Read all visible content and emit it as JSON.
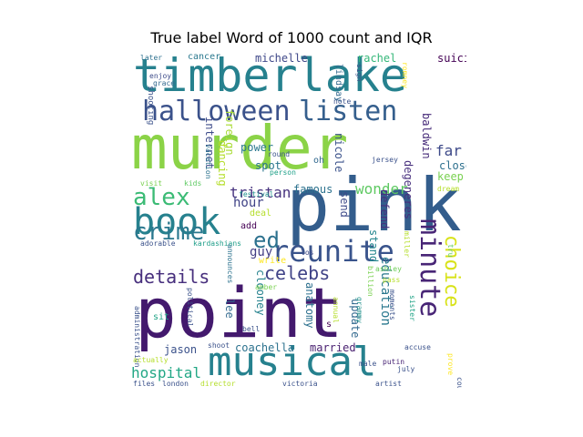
{
  "chart_data": {
    "type": "wordcloud",
    "title": "True label Word of 1000 count and IQR",
    "colormap": "viridis",
    "words": [
      {
        "text": "point",
        "color": "#43196d"
      },
      {
        "text": "murder",
        "color": "#8bd347"
      },
      {
        "text": "pink",
        "color": "#335d8c"
      },
      {
        "text": "timberlake",
        "color": "#26818e"
      },
      {
        "text": "musical",
        "color": "#26818e"
      },
      {
        "text": "book",
        "color": "#26818e"
      },
      {
        "text": "reunite",
        "color": "#3a548c"
      },
      {
        "text": "halloween",
        "color": "#3b528b"
      },
      {
        "text": "listen",
        "color": "#355f8d"
      },
      {
        "text": "crime",
        "color": "#2a788e"
      },
      {
        "text": "alex",
        "color": "#3bbb75"
      },
      {
        "text": "details",
        "color": "#472f7d"
      },
      {
        "text": "celebs",
        "color": "#404387"
      },
      {
        "text": "minute",
        "color": "#482576"
      },
      {
        "text": "choice",
        "color": "#d8e219"
      },
      {
        "text": "hospital",
        "color": "#22a785"
      },
      {
        "text": "ed",
        "color": "#2c718e"
      },
      {
        "text": "tristan",
        "color": "#46327e"
      },
      {
        "text": "wonder",
        "color": "#5ec962"
      },
      {
        "text": "guy",
        "color": "#433e85"
      },
      {
        "text": "hour",
        "color": "#404387"
      },
      {
        "text": "far",
        "color": "#3e4a89"
      },
      {
        "text": "michelle",
        "color": "#3f4889"
      },
      {
        "text": "rachel",
        "color": "#35b779"
      },
      {
        "text": "suicide",
        "color": "#440154"
      },
      {
        "text": "cancer",
        "color": "#2a788e"
      },
      {
        "text": "famous",
        "color": "#2c728e"
      },
      {
        "text": "spot",
        "color": "#2a768e"
      },
      {
        "text": "power",
        "color": "#2a788e"
      },
      {
        "text": "education",
        "color": "#2a788e"
      },
      {
        "text": "nicole",
        "color": "#3b528b"
      },
      {
        "text": "lindsay",
        "color": "#31688e"
      },
      {
        "text": "internet",
        "color": "#3e4c8a"
      },
      {
        "text": "foreign",
        "color": "#a8db34"
      },
      {
        "text": "dancing",
        "color": "#b5de2b"
      },
      {
        "text": "baldwin",
        "color": "#472c7a"
      },
      {
        "text": "close",
        "color": "#2d708e"
      },
      {
        "text": "keep",
        "color": "#7ad151"
      },
      {
        "text": "coachella",
        "color": "#2c728e"
      },
      {
        "text": "married",
        "color": "#481f70"
      },
      {
        "text": "jason",
        "color": "#3b528b"
      },
      {
        "text": "clooney",
        "color": "#26828e"
      },
      {
        "text": "lee",
        "color": "#31688e"
      },
      {
        "text": "update",
        "color": "#31688e"
      },
      {
        "text": "degeneres",
        "color": "#472f7d"
      },
      {
        "text": "write",
        "color": "#fde725"
      },
      {
        "text": "deal",
        "color": "#b5de2b"
      },
      {
        "text": "add",
        "color": "#440154"
      },
      {
        "text": "send",
        "color": "#3e4a89"
      },
      {
        "text": "stand",
        "color": "#24868e"
      },
      {
        "text": "defend",
        "color": "#46307e"
      },
      {
        "text": "anatomy",
        "color": "#2d708e"
      },
      {
        "text": "sit",
        "color": "#20a386"
      },
      {
        "text": "later",
        "color": "#2d708e"
      },
      {
        "text": "enjoy",
        "color": "#3e4c8a"
      },
      {
        "text": "grace",
        "color": "#31688e"
      },
      {
        "text": "shooting",
        "color": "#3b528b"
      },
      {
        "text": "vacation",
        "color": "#2c728e"
      },
      {
        "text": "kids",
        "color": "#5ec962"
      },
      {
        "text": "visit",
        "color": "#7ad151"
      },
      {
        "text": "round",
        "color": "#3b528b"
      },
      {
        "text": "person",
        "color": "#1fa088"
      },
      {
        "text": "festival",
        "color": "#21918c"
      },
      {
        "text": "oh",
        "color": "#31688e"
      },
      {
        "text": "jersey",
        "color": "#3b528b"
      },
      {
        "text": "dream",
        "color": "#b5de2b"
      },
      {
        "text": "note",
        "color": "#3b528b"
      },
      {
        "text": "sign",
        "color": "#3b528b"
      },
      {
        "text": "romney",
        "color": "#fde725"
      },
      {
        "text": "adorable",
        "color": "#3b528b"
      },
      {
        "text": "kardashians",
        "color": "#1f9e89"
      },
      {
        "text": "announces",
        "color": "#2c728e"
      },
      {
        "text": "political",
        "color": "#3b528b"
      },
      {
        "text": "los",
        "color": "#3e4a89"
      },
      {
        "text": "ashley",
        "color": "#6ece58"
      },
      {
        "text": "pass",
        "color": "#b5de2b"
      },
      {
        "text": "amber",
        "color": "#7ad151"
      },
      {
        "text": "tru",
        "color": "#5ec962"
      },
      {
        "text": "sister",
        "color": "#20a386"
      },
      {
        "text": "moments",
        "color": "#3b528b"
      },
      {
        "text": "grammy",
        "color": "#21918c"
      },
      {
        "text": "billion",
        "color": "#7ad151"
      },
      {
        "text": "annual",
        "color": "#b5de2b"
      },
      {
        "text": "s",
        "color": "#440154"
      },
      {
        "text": "bell",
        "color": "#3b528b"
      },
      {
        "text": "administration",
        "color": "#3b528b"
      },
      {
        "text": "shoot",
        "color": "#3b528b"
      },
      {
        "text": "actually",
        "color": "#b5de2b"
      },
      {
        "text": "putin",
        "color": "#482475"
      },
      {
        "text": "july",
        "color": "#3b528b"
      },
      {
        "text": "accuse",
        "color": "#3b528b"
      },
      {
        "text": "male",
        "color": "#3b528b"
      },
      {
        "text": "prove",
        "color": "#fde725"
      },
      {
        "text": "court",
        "color": "#3b528b"
      },
      {
        "text": "files",
        "color": "#3b528b"
      },
      {
        "text": "london",
        "color": "#3b528b"
      },
      {
        "text": "director",
        "color": "#b5de2b"
      },
      {
        "text": "victoria",
        "color": "#3b528b"
      },
      {
        "text": "artist",
        "color": "#3b528b"
      },
      {
        "text": "miller",
        "color": "#b5de2b"
      }
    ]
  }
}
